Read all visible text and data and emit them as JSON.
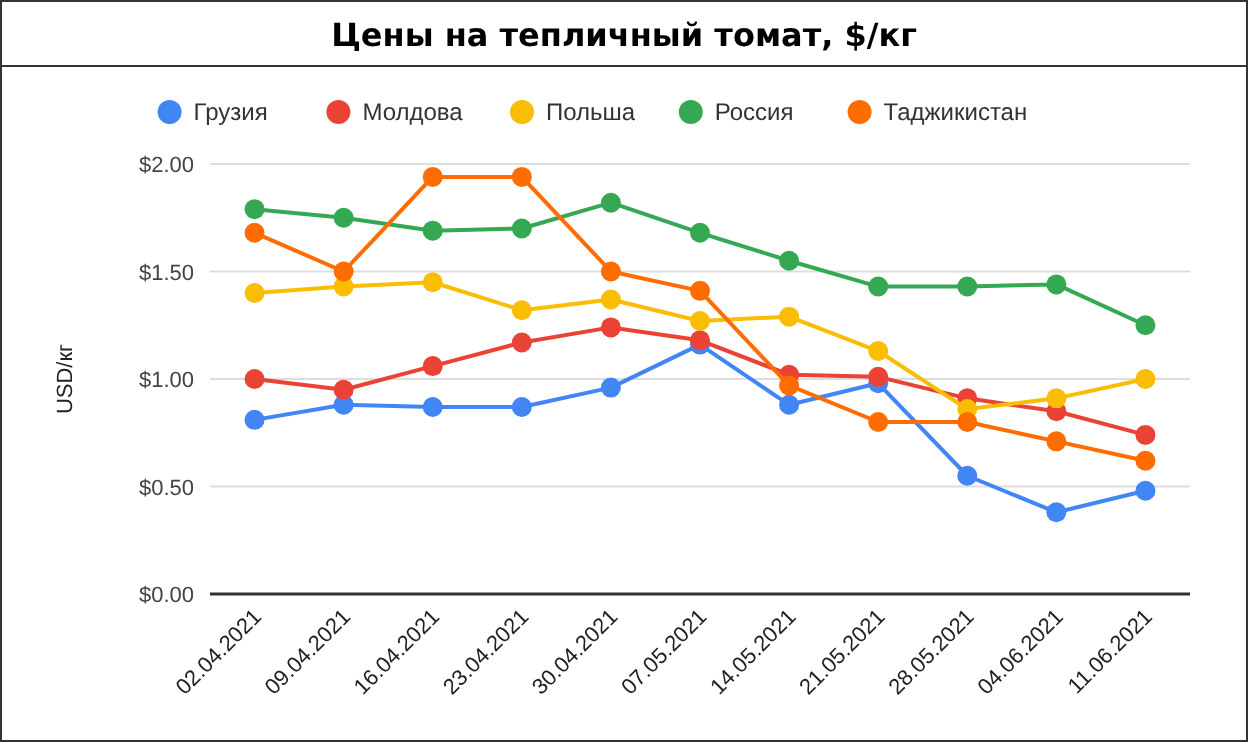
{
  "chart_data": {
    "type": "line",
    "title": "Цены на тепличный томат, $/кг",
    "ylabel": "USD/кг",
    "categories": [
      "02.04.2021",
      "09.04.2021",
      "16.04.2021",
      "23.04.2021",
      "30.04.2021",
      "07.05.2021",
      "14.05.2021",
      "21.05.2021",
      "28.05.2021",
      "04.06.2021",
      "11.06.2021"
    ],
    "series": [
      {
        "name": "Грузия",
        "color": "#4285f4",
        "values": [
          0.81,
          0.88,
          0.87,
          0.87,
          0.96,
          1.16,
          0.88,
          0.98,
          0.55,
          0.38,
          0.48
        ]
      },
      {
        "name": "Молдова",
        "color": "#ea4335",
        "values": [
          1.0,
          0.95,
          1.06,
          1.17,
          1.24,
          1.18,
          1.02,
          1.01,
          0.91,
          0.85,
          0.74
        ]
      },
      {
        "name": "Польша",
        "color": "#fbbc04",
        "values": [
          1.4,
          1.43,
          1.45,
          1.32,
          1.37,
          1.27,
          1.29,
          1.13,
          0.86,
          0.91,
          1.0
        ]
      },
      {
        "name": "Россия",
        "color": "#34a853",
        "values": [
          1.79,
          1.75,
          1.69,
          1.7,
          1.82,
          1.68,
          1.55,
          1.43,
          1.43,
          1.44,
          1.25
        ]
      },
      {
        "name": "Таджикистан",
        "color": "#ff6d01",
        "values": [
          1.68,
          1.5,
          1.94,
          1.94,
          1.5,
          1.41,
          0.97,
          0.8,
          0.8,
          0.71,
          0.62
        ]
      }
    ],
    "ylim": [
      0,
      2
    ],
    "yticks": [
      {
        "value": 0,
        "label": "$0.00"
      },
      {
        "value": 0.5,
        "label": "$0.50"
      },
      {
        "value": 1,
        "label": "$1.00"
      },
      {
        "value": 1.5,
        "label": "$1.50"
      },
      {
        "value": 2,
        "label": "$2.00"
      }
    ],
    "grid": "y",
    "legend": "top",
    "marker": "circle",
    "line_style": "solid"
  }
}
